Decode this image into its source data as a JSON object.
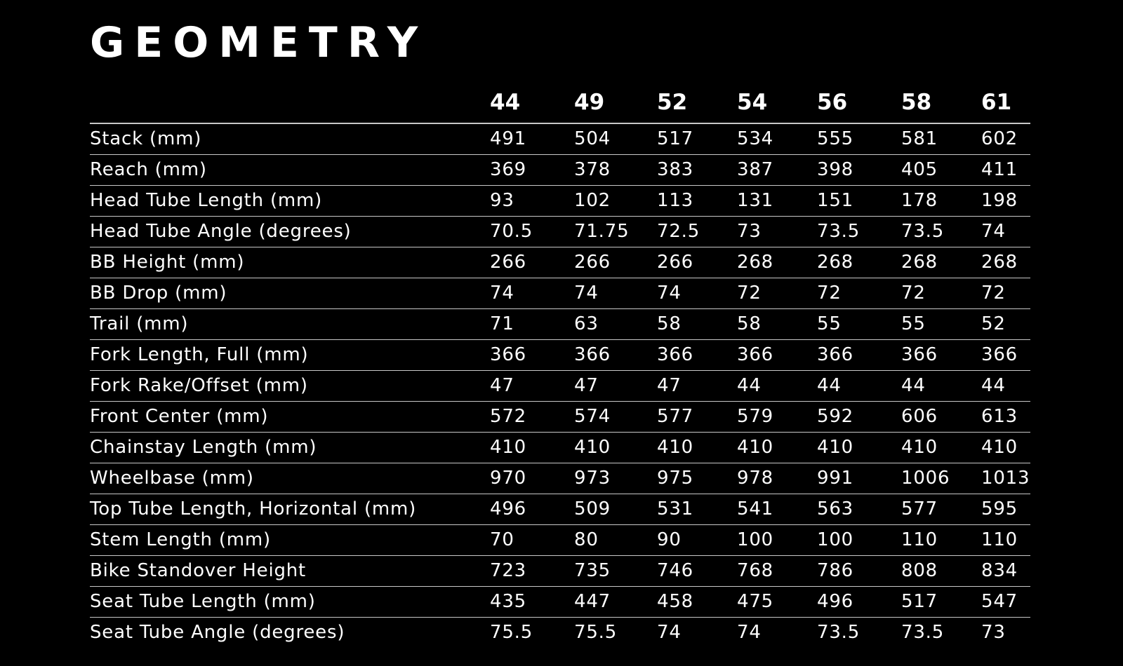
{
  "title": "GEOMETRY",
  "colors": {
    "background": "#000000",
    "text": "#ffffff",
    "rule": "#c8c8c8"
  },
  "sizes": [
    "44",
    "49",
    "52",
    "54",
    "56",
    "58",
    "61"
  ],
  "rows": [
    {
      "label": "Stack (mm)",
      "values": [
        "491",
        "504",
        "517",
        "534",
        "555",
        "581",
        "602"
      ]
    },
    {
      "label": "Reach (mm)",
      "values": [
        "369",
        "378",
        "383",
        "387",
        "398",
        "405",
        "411"
      ]
    },
    {
      "label": "Head Tube Length (mm)",
      "values": [
        "93",
        "102",
        "113",
        "131",
        "151",
        "178",
        "198"
      ]
    },
    {
      "label": "Head Tube Angle (degrees)",
      "values": [
        "70.5",
        "71.75",
        "72.5",
        "73",
        "73.5",
        "73.5",
        "74"
      ]
    },
    {
      "label": "BB Height (mm)",
      "values": [
        "266",
        "266",
        "266",
        "268",
        "268",
        "268",
        "268"
      ]
    },
    {
      "label": "BB Drop (mm)",
      "values": [
        "74",
        "74",
        "74",
        "72",
        "72",
        "72",
        "72"
      ]
    },
    {
      "label": "Trail (mm)",
      "values": [
        "71",
        "63",
        "58",
        "58",
        "55",
        "55",
        "52"
      ]
    },
    {
      "label": "Fork Length, Full (mm)",
      "values": [
        "366",
        "366",
        "366",
        "366",
        "366",
        "366",
        "366"
      ]
    },
    {
      "label": "Fork Rake/Offset (mm)",
      "values": [
        "47",
        "47",
        "47",
        "44",
        "44",
        "44",
        "44"
      ]
    },
    {
      "label": "Front Center (mm)",
      "values": [
        "572",
        "574",
        "577",
        "579",
        "592",
        "606",
        "613"
      ]
    },
    {
      "label": "Chainstay Length (mm)",
      "values": [
        "410",
        "410",
        "410",
        "410",
        "410",
        "410",
        "410"
      ]
    },
    {
      "label": "Wheelbase (mm)",
      "values": [
        "970",
        "973",
        "975",
        "978",
        "991",
        "1006",
        "1013"
      ]
    },
    {
      "label": "Top Tube Length, Horizontal (mm)",
      "values": [
        "496",
        "509",
        "531",
        "541",
        "563",
        "577",
        "595"
      ]
    },
    {
      "label": "Stem Length (mm)",
      "values": [
        "70",
        "80",
        "90",
        "100",
        "100",
        "110",
        "110"
      ]
    },
    {
      "label": "Bike Standover Height",
      "values": [
        "723",
        "735",
        "746",
        "768",
        "786",
        "808",
        "834"
      ]
    },
    {
      "label": "Seat Tube Length (mm)",
      "values": [
        "435",
        "447",
        "458",
        "475",
        "496",
        "517",
        "547"
      ]
    },
    {
      "label": "Seat Tube Angle (degrees)",
      "values": [
        "75.5",
        "75.5",
        "74",
        "74",
        "73.5",
        "73.5",
        "73"
      ]
    }
  ]
}
